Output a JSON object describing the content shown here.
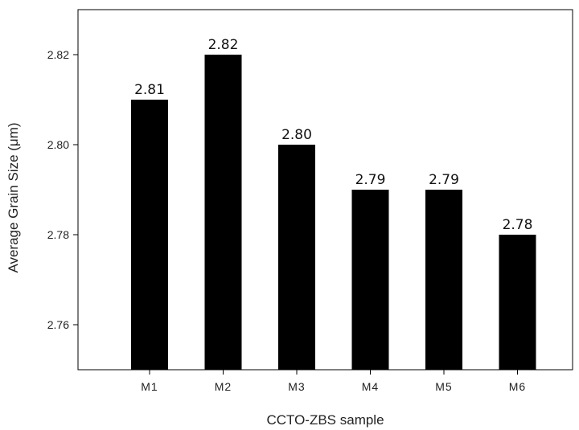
{
  "chart_data": {
    "type": "bar",
    "categories": [
      "M1",
      "M2",
      "M3",
      "M4",
      "M5",
      "M6"
    ],
    "values": [
      2.81,
      2.82,
      2.8,
      2.79,
      2.79,
      2.78
    ],
    "data_labels": [
      "2.81",
      "2.82",
      "2.80",
      "2.79",
      "2.79",
      "2.78"
    ],
    "xlabel": "CCTO-ZBS sample",
    "ylabel": "Average Grain Size (μm)",
    "ylim": [
      2.75,
      2.83
    ],
    "yticks": [
      2.76,
      2.78,
      2.8,
      2.82
    ],
    "ytick_labels": [
      "2.76",
      "2.78",
      "2.80",
      "2.82"
    ],
    "grid": false,
    "bar_color": "#000000"
  }
}
